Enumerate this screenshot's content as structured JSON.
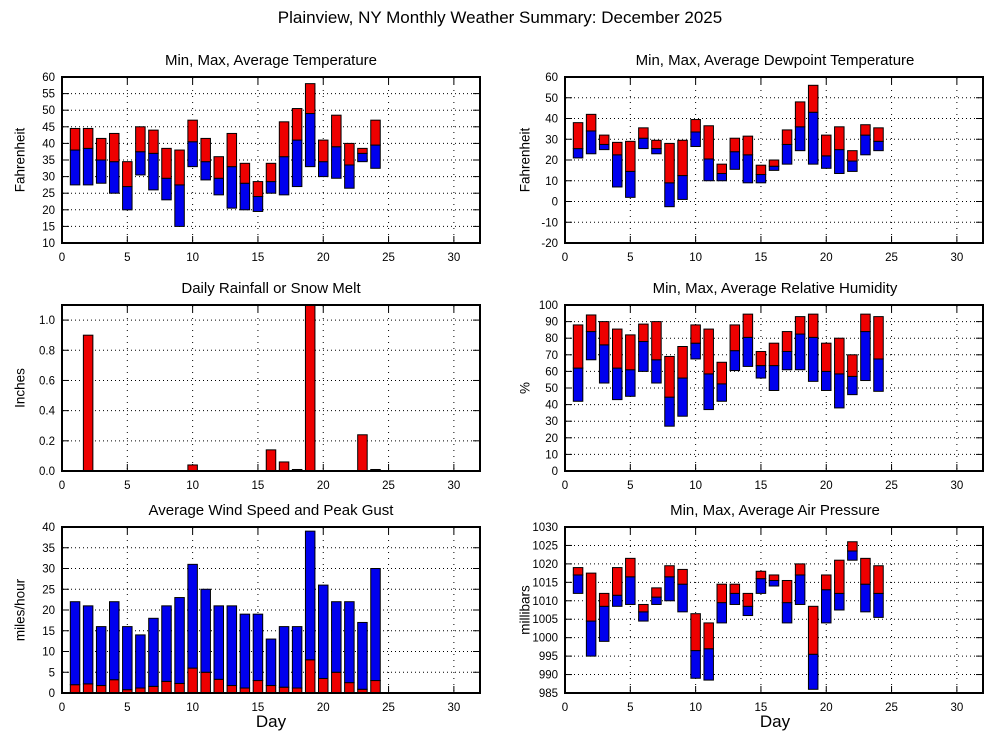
{
  "page_title": "Plainview, NY Monthly Weather Summary: December 2025",
  "xlabel": "Day",
  "colors": {
    "bar_red": "#ee0000",
    "bar_blue": "#0000ee",
    "axis": "#000000",
    "background": "#ffffff"
  },
  "chart_data": [
    {
      "type": "bar",
      "style": "range",
      "title": "Min, Max, Average Temperature",
      "ylabel": "Fahrenheit",
      "ylim": [
        10,
        60
      ],
      "ytick_step": 5,
      "ytick_decimals": 0,
      "xlim": [
        0,
        32
      ],
      "xticks": [
        0,
        5,
        10,
        15,
        20,
        25,
        30
      ],
      "grid": true,
      "legend": null,
      "days": [
        1,
        2,
        3,
        4,
        5,
        6,
        7,
        8,
        9,
        10,
        11,
        12,
        13,
        14,
        15,
        16,
        17,
        18,
        19,
        20,
        21,
        22,
        23,
        24
      ],
      "series": [
        {
          "name": "min",
          "values": [
            27.5,
            27.5,
            28,
            25,
            20,
            30.5,
            26,
            23,
            15,
            33,
            29,
            24.5,
            20.5,
            20,
            19.5,
            25,
            24.5,
            27,
            33,
            30,
            29.5,
            26.5,
            34.5,
            32.5
          ]
        },
        {
          "name": "average",
          "values": [
            38,
            38.5,
            35,
            34.5,
            27,
            37.5,
            37,
            29.5,
            27.5,
            40.5,
            34.5,
            29.5,
            33,
            28,
            24,
            28.5,
            36,
            41,
            49,
            34.5,
            39,
            33.5,
            37,
            39.5
          ]
        },
        {
          "name": "max",
          "values": [
            44.5,
            44.5,
            41.5,
            43,
            34.5,
            45,
            44,
            38.5,
            38,
            47,
            41.5,
            36,
            43,
            34,
            28.5,
            34,
            46.5,
            50.5,
            58,
            41,
            48.5,
            40,
            38.5,
            47
          ]
        }
      ]
    },
    {
      "type": "bar",
      "style": "range",
      "title": "Min, Max, Average Dewpoint Temperature",
      "ylabel": "Fahrenheit",
      "ylim": [
        -20,
        60
      ],
      "ytick_step": 10,
      "ytick_decimals": 0,
      "xlim": [
        0,
        32
      ],
      "xticks": [
        0,
        5,
        10,
        15,
        20,
        25,
        30
      ],
      "grid": true,
      "legend": null,
      "days": [
        1,
        2,
        3,
        4,
        5,
        6,
        7,
        8,
        9,
        10,
        11,
        12,
        13,
        14,
        15,
        16,
        17,
        18,
        19,
        20,
        21,
        22,
        23,
        24
      ],
      "series": [
        {
          "name": "min",
          "values": [
            21,
            23,
            25,
            7,
            2,
            25.5,
            23,
            -2.5,
            1,
            26.5,
            10,
            10,
            15.5,
            9,
            9,
            15,
            18,
            24.5,
            18,
            16,
            13.5,
            14.5,
            22.5,
            24.5
          ]
        },
        {
          "name": "average",
          "values": [
            25.5,
            34,
            27.5,
            22.5,
            14.5,
            30.5,
            25.5,
            9,
            12.5,
            33.5,
            20.5,
            13.5,
            24,
            22.5,
            13,
            17,
            27.5,
            36,
            43,
            22,
            25,
            19.5,
            32,
            29
          ]
        },
        {
          "name": "max",
          "values": [
            38,
            42,
            32,
            28.5,
            29,
            35.5,
            29.5,
            28,
            29.5,
            39.5,
            36.5,
            18,
            30.5,
            31.5,
            17.5,
            20,
            34.5,
            48,
            56,
            32,
            36,
            24.5,
            37,
            35.5
          ]
        }
      ]
    },
    {
      "type": "bar",
      "style": "single",
      "title": "Daily Rainfall or Snow Melt",
      "ylabel": "Inches",
      "ylim": [
        0,
        1.1
      ],
      "ytick_step": 0.2,
      "ytick_decimals": 1,
      "xlim": [
        0,
        32
      ],
      "xticks": [
        0,
        5,
        10,
        15,
        20,
        25,
        30
      ],
      "grid": true,
      "legend": null,
      "days": [
        1,
        2,
        3,
        4,
        5,
        6,
        7,
        8,
        9,
        10,
        11,
        12,
        13,
        14,
        15,
        16,
        17,
        18,
        19,
        20,
        21,
        22,
        23,
        24
      ],
      "series": [
        {
          "name": "rainfall",
          "values": [
            0,
            0.9,
            0,
            0,
            0,
            0,
            0,
            0,
            0,
            0.04,
            0,
            0,
            0,
            0,
            0,
            0.14,
            0.06,
            0.01,
            1.1,
            0,
            0,
            0,
            0.24,
            0.01
          ]
        }
      ]
    },
    {
      "type": "bar",
      "style": "range",
      "title": "Min, Max, Average Relative Humidity",
      "ylabel": "%",
      "ylim": [
        0,
        100
      ],
      "ytick_step": 10,
      "ytick_decimals": 0,
      "xlim": [
        0,
        32
      ],
      "xticks": [
        0,
        5,
        10,
        15,
        20,
        25,
        30
      ],
      "grid": true,
      "legend": null,
      "days": [
        1,
        2,
        3,
        4,
        5,
        6,
        7,
        8,
        9,
        10,
        11,
        12,
        13,
        14,
        15,
        16,
        17,
        18,
        19,
        20,
        21,
        22,
        23,
        24
      ],
      "series": [
        {
          "name": "min",
          "values": [
            42,
            67,
            53,
            43,
            45,
            60,
            53,
            27,
            33,
            67.5,
            37,
            42,
            60.5,
            63,
            56,
            48.5,
            61,
            61,
            54,
            48.5,
            38,
            46,
            54.5,
            48
          ]
        },
        {
          "name": "average",
          "values": [
            62,
            84,
            76,
            62,
            61,
            78,
            67,
            44.5,
            56,
            77,
            58.5,
            52.5,
            72.5,
            80.5,
            63.5,
            63.5,
            72,
            82.5,
            80.5,
            60,
            58.5,
            57,
            84,
            67.5
          ]
        },
        {
          "name": "max",
          "values": [
            88,
            94,
            90,
            85.5,
            82,
            88.5,
            90,
            69,
            75,
            88,
            85.5,
            65.5,
            88,
            94.5,
            72,
            77,
            84,
            93,
            94.5,
            77,
            80,
            70,
            94.5,
            93
          ]
        }
      ]
    },
    {
      "type": "bar",
      "style": "stack",
      "title": "Average Wind Speed and Peak Gust",
      "ylabel": "miles/hour",
      "ylim": [
        0,
        40
      ],
      "ytick_step": 5,
      "ytick_decimals": 0,
      "xlim": [
        0,
        32
      ],
      "xticks": [
        0,
        5,
        10,
        15,
        20,
        25,
        30
      ],
      "grid": true,
      "legend": null,
      "days": [
        1,
        2,
        3,
        4,
        5,
        6,
        7,
        8,
        9,
        10,
        11,
        12,
        13,
        14,
        15,
        16,
        17,
        18,
        19,
        20,
        21,
        22,
        23,
        24
      ],
      "series": [
        {
          "name": "average_wind_speed",
          "values": [
            2,
            2.2,
            1.8,
            3.2,
            0.8,
            1.2,
            1.6,
            2.8,
            2.3,
            6,
            5,
            3.3,
            1.8,
            1.2,
            3,
            1.8,
            1.4,
            1.2,
            8,
            3.5,
            5,
            2.5,
            0.9,
            3
          ]
        },
        {
          "name": "peak_gust",
          "values": [
            22,
            21,
            16,
            22,
            16,
            14,
            18,
            21,
            23,
            31,
            25,
            21,
            21,
            19,
            19,
            13,
            16,
            16,
            39,
            26,
            22,
            22,
            17,
            30
          ]
        }
      ]
    },
    {
      "type": "bar",
      "style": "range",
      "title": "Min, Max, Average Air Pressure",
      "ylabel": "millibars",
      "ylim": [
        985,
        1030
      ],
      "ytick_step": 5,
      "ytick_decimals": 0,
      "xlim": [
        0,
        32
      ],
      "xticks": [
        0,
        5,
        10,
        15,
        20,
        25,
        30
      ],
      "grid": true,
      "legend": null,
      "days": [
        1,
        2,
        3,
        4,
        5,
        6,
        7,
        8,
        9,
        10,
        11,
        12,
        13,
        14,
        15,
        16,
        17,
        18,
        19,
        20,
        21,
        22,
        23,
        24
      ],
      "series": [
        {
          "name": "min",
          "values": [
            1012,
            995,
            999,
            1008.5,
            1009,
            1004.5,
            1009,
            1010,
            1007,
            989,
            988.5,
            1004,
            1009,
            1006,
            1012,
            1014,
            1004,
            1009,
            986,
            1004,
            1007.5,
            1021,
            1007,
            1005.5
          ]
        },
        {
          "name": "average",
          "values": [
            1017,
            1004.5,
            1008.5,
            1011.5,
            1016.5,
            1007,
            1011,
            1016.5,
            1014.5,
            996.5,
            997,
            1009.5,
            1012,
            1008.5,
            1016,
            1015.5,
            1009.5,
            1017,
            995.5,
            1013,
            1012,
            1023.5,
            1014.5,
            1012
          ]
        },
        {
          "name": "max",
          "values": [
            1019,
            1017.5,
            1012,
            1019,
            1021.5,
            1009,
            1013.5,
            1019.5,
            1018.5,
            1006.5,
            1004,
            1014.5,
            1014.5,
            1012,
            1018,
            1017,
            1015.5,
            1020,
            1008.5,
            1017,
            1021,
            1026,
            1021.5,
            1019.5
          ]
        }
      ]
    }
  ]
}
